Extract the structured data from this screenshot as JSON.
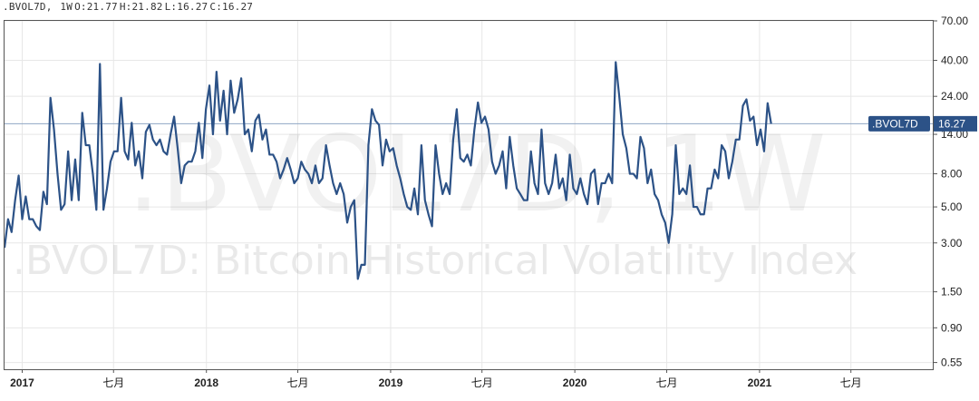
{
  "header": {
    "symbol": ".BVOL7D,",
    "interval": "1W",
    "open": "O:21.77",
    "high": "H:21.82",
    "low": "L:16.27",
    "close": "C:16.27"
  },
  "watermark": {
    "symbol_text": ".BVOL7D, 1W",
    "description": ".BVOL7D: Bitcoin Historical Volatility Index"
  },
  "price_tag": {
    "symbol": ".BVOL7D",
    "value": "16.27"
  },
  "colors": {
    "line": "#2c5287",
    "tag_bg": "#2c5287",
    "grid": "#e7e7e7",
    "axis": "#555555"
  },
  "chart_data": {
    "type": "line",
    "scale": "log",
    "grid": true,
    "legend": "none",
    "ylim": [
      0.5,
      70
    ],
    "xlim": [
      "2016-11-27",
      "2021-12-12"
    ],
    "yticks": [
      0.55,
      0.9,
      1.5,
      3.0,
      5.0,
      8.0,
      14.0,
      24.0,
      40.0,
      70.0
    ],
    "ytick_labels": [
      "0.55",
      "0.90",
      "1.50",
      "3.00",
      "5.00",
      "8.00",
      "14.00",
      "24.00",
      "40.00",
      "70.00"
    ],
    "xticks": [
      {
        "date": "2017-01-01",
        "label": "2017",
        "year": true
      },
      {
        "date": "2017-07-01",
        "label": "七月",
        "year": false
      },
      {
        "date": "2018-01-01",
        "label": "2018",
        "year": true
      },
      {
        "date": "2018-07-01",
        "label": "七月",
        "year": false
      },
      {
        "date": "2019-01-01",
        "label": "2019",
        "year": true
      },
      {
        "date": "2019-07-01",
        "label": "七月",
        "year": false
      },
      {
        "date": "2020-01-01",
        "label": "2020",
        "year": true
      },
      {
        "date": "2020-07-01",
        "label": "七月",
        "year": false
      },
      {
        "date": "2021-01-01",
        "label": "2021",
        "year": true
      },
      {
        "date": "2021-07-01",
        "label": "七月",
        "year": false
      }
    ],
    "reference_line": 16.27,
    "series": [
      {
        "start": "2016-11-27",
        "interval_days": 7,
        "values": [
          2.8,
          4.2,
          3.5,
          5.5,
          7.8,
          4.2,
          5.8,
          4.2,
          4.2,
          3.8,
          3.6,
          6.2,
          5.2,
          23.5,
          15.0,
          8.0,
          4.8,
          5.2,
          11.0,
          5.5,
          9.8,
          5.5,
          19.0,
          12.0,
          12.0,
          8.0,
          4.8,
          38.0,
          4.8,
          6.5,
          9.5,
          11.0,
          11.0,
          23.5,
          11.0,
          9.8,
          16.5,
          9.0,
          11.0,
          7.5,
          14.5,
          16.0,
          13.0,
          12.0,
          13.0,
          11.0,
          10.5,
          14.0,
          18.0,
          11.5,
          7.0,
          9.0,
          9.5,
          9.5,
          11.0,
          16.5,
          10.0,
          20.0,
          28.0,
          14.0,
          34.0,
          17.0,
          26.0,
          14.0,
          30.0,
          19.0,
          23.0,
          31.0,
          14.0,
          15.0,
          11.0,
          17.0,
          18.5,
          13.0,
          15.0,
          10.5,
          10.5,
          9.5,
          7.5,
          8.5,
          10.0,
          8.5,
          7.0,
          7.5,
          9.5,
          8.5,
          8.0,
          7.0,
          9.0,
          7.0,
          7.5,
          12.0,
          9.0,
          7.0,
          6.0,
          7.0,
          6.0,
          4.0,
          5.0,
          5.5,
          1.8,
          2.2,
          2.2,
          12.0,
          20.0,
          17.0,
          16.0,
          9.0,
          13.0,
          11.0,
          11.5,
          9.0,
          7.5,
          6.0,
          5.0,
          4.8,
          6.5,
          4.5,
          12.0,
          5.5,
          4.5,
          3.8,
          12.0,
          8.0,
          6.0,
          7.0,
          6.0,
          13.0,
          20.0,
          10.0,
          9.5,
          10.5,
          9.0,
          15.0,
          22.0,
          16.5,
          18.0,
          15.0,
          9.5,
          8.0,
          9.0,
          11.0,
          6.5,
          13.5,
          9.0,
          6.5,
          6.0,
          5.5,
          5.5,
          11.0,
          7.0,
          6.0,
          15.0,
          7.0,
          6.0,
          7.0,
          10.5,
          6.5,
          7.5,
          5.5,
          10.5,
          6.5,
          6.0,
          7.5,
          6.0,
          5.2,
          8.0,
          8.5,
          5.2,
          7.0,
          7.0,
          8.0,
          7.0,
          39.0,
          24.0,
          14.0,
          11.5,
          8.0,
          8.0,
          7.5,
          13.5,
          11.5,
          7.0,
          8.5,
          6.0,
          5.5,
          4.5,
          4.0,
          3.0,
          4.5,
          12.0,
          6.0,
          6.5,
          6.0,
          9.0,
          5.0,
          5.0,
          4.5,
          4.5,
          6.5,
          6.5,
          8.5,
          7.5,
          12.0,
          11.0,
          7.5,
          9.5,
          13.0,
          13.0,
          21.0,
          23.0,
          17.0,
          18.0,
          12.0,
          15.0,
          11.0,
          21.77,
          16.27
        ]
      }
    ]
  }
}
